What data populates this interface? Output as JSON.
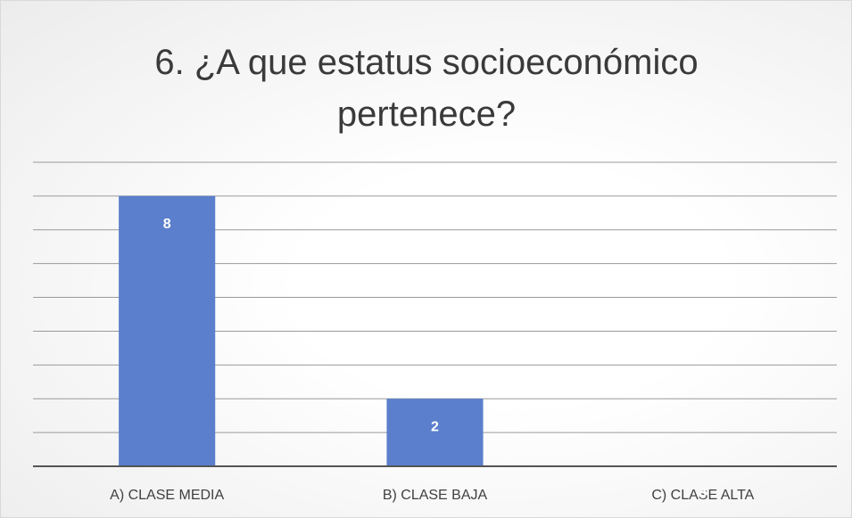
{
  "chart_data": {
    "type": "bar",
    "title": "6. ¿A que estatus socioeconómico pertenece?",
    "categories": [
      "A) CLASE MEDIA",
      "B) CLASE BAJA",
      "C) CLASE ALTA"
    ],
    "values": [
      8,
      2,
      0
    ],
    "color": "#5b7fcc",
    "ylim": [
      0,
      9
    ],
    "yticks": [
      0,
      1,
      2,
      3,
      4,
      5,
      6,
      7,
      8,
      9
    ],
    "grid": true
  }
}
